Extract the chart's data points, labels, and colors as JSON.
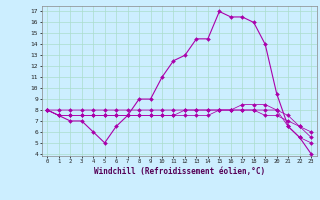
{
  "xlabel": "Windchill (Refroidissement éolien,°C)",
  "bg_color": "#cceeff",
  "grid_color": "#aaddcc",
  "line_color": "#aa00aa",
  "hours": [
    0,
    1,
    2,
    3,
    4,
    5,
    6,
    7,
    8,
    9,
    10,
    11,
    12,
    13,
    14,
    15,
    16,
    17,
    18,
    19,
    20,
    21,
    22,
    23
  ],
  "curve1": [
    8.0,
    7.5,
    7.0,
    7.0,
    6.0,
    5.0,
    6.5,
    7.5,
    9.0,
    9.0,
    11.0,
    12.5,
    13.0,
    14.5,
    14.5,
    17.0,
    16.5,
    16.5,
    16.0,
    14.0,
    9.5,
    6.5,
    5.5,
    4.0
  ],
  "curve2": [
    8.0,
    7.5,
    7.5,
    7.5,
    7.5,
    7.5,
    7.5,
    7.5,
    7.5,
    7.5,
    7.5,
    7.5,
    8.0,
    8.0,
    8.0,
    8.0,
    8.0,
    8.5,
    8.5,
    8.5,
    8.0,
    6.5,
    5.5,
    5.0
  ],
  "curve3": [
    8.0,
    7.5,
    7.5,
    7.5,
    7.5,
    7.5,
    7.5,
    7.5,
    7.5,
    7.5,
    7.5,
    7.5,
    7.5,
    7.5,
    7.5,
    8.0,
    8.0,
    8.0,
    8.0,
    7.5,
    7.5,
    7.0,
    6.5,
    5.5
  ],
  "curve4": [
    8.0,
    8.0,
    8.0,
    8.0,
    8.0,
    8.0,
    8.0,
    8.0,
    8.0,
    8.0,
    8.0,
    8.0,
    8.0,
    8.0,
    8.0,
    8.0,
    8.0,
    8.0,
    8.0,
    8.0,
    8.0,
    7.5,
    6.5,
    6.0
  ],
  "ylim_min": 3.8,
  "ylim_max": 17.5,
  "yticks": [
    4,
    5,
    6,
    7,
    8,
    9,
    10,
    11,
    12,
    13,
    14,
    15,
    16,
    17
  ],
  "xticks": [
    0,
    1,
    2,
    3,
    4,
    5,
    6,
    7,
    8,
    9,
    10,
    11,
    12,
    13,
    14,
    15,
    16,
    17,
    18,
    19,
    20,
    21,
    22,
    23
  ],
  "marker": "D",
  "markersize": 2.0,
  "linewidth": 0.8
}
